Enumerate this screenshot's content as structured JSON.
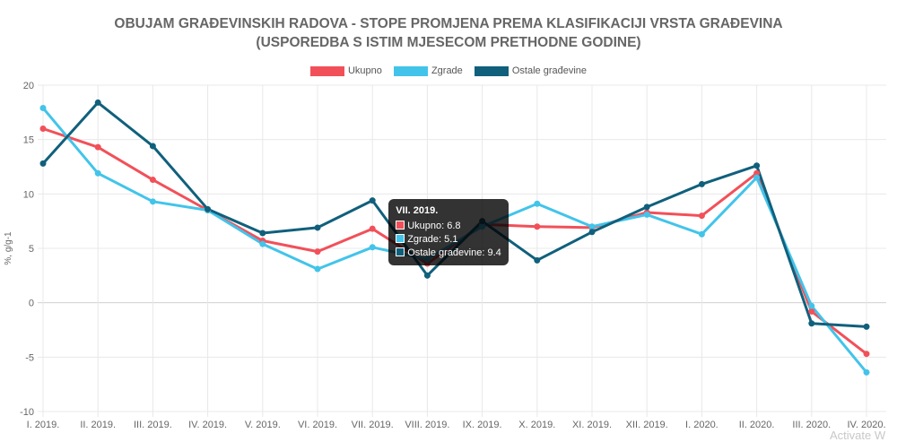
{
  "chart_data": {
    "type": "line",
    "title_lines": [
      "OBUJAM GRAĐEVINSKIH RADOVA - STOPE PROMJENA PREMA KLASIFIKACIJI VRSTA GRAĐEVINA",
      "(USPOREDBA S ISTIM MJESECOM PRETHODNE GODINE)"
    ],
    "ylabel": "%, g/g-1",
    "xlabel": "",
    "ylim": [
      -10,
      20
    ],
    "yticks": [
      -10,
      -5,
      0,
      5,
      10,
      15,
      20
    ],
    "grid": true,
    "legend_position": "top",
    "categories": [
      "I. 2019.",
      "II. 2019.",
      "III. 2019.",
      "IV. 2019.",
      "V. 2019.",
      "VI. 2019.",
      "VII. 2019.",
      "VIII. 2019.",
      "IX. 2019.",
      "X. 2019.",
      "XI. 2019.",
      "XII. 2019.",
      "I. 2020.",
      "II. 2020.",
      "III. 2020.",
      "IV. 2020."
    ],
    "series": [
      {
        "name": "Ukupno",
        "color": "#f25059",
        "values": [
          16.0,
          14.3,
          11.3,
          8.5,
          5.7,
          4.7,
          6.8,
          3.6,
          7.2,
          7.0,
          6.9,
          8.3,
          8.0,
          11.9,
          -0.8,
          -4.7
        ]
      },
      {
        "name": "Zgrade",
        "color": "#42c4ea",
        "values": [
          17.9,
          11.9,
          9.3,
          8.5,
          5.4,
          3.1,
          5.1,
          4.0,
          7.0,
          9.1,
          7.0,
          8.1,
          6.3,
          11.5,
          -0.3,
          -6.4
        ]
      },
      {
        "name": "Ostale građevine",
        "color": "#10607c",
        "values": [
          12.8,
          18.4,
          14.4,
          8.6,
          6.4,
          6.9,
          9.4,
          2.5,
          7.5,
          3.9,
          6.5,
          8.8,
          10.9,
          12.6,
          -1.9,
          -2.2
        ]
      }
    ]
  },
  "tooltip": {
    "title": "VII. 2019.",
    "rows": [
      "Ukupno: 6.8",
      "Zgrade: 5.1",
      "Ostale građevine: 9.4"
    ]
  },
  "watermark": "Activate W"
}
